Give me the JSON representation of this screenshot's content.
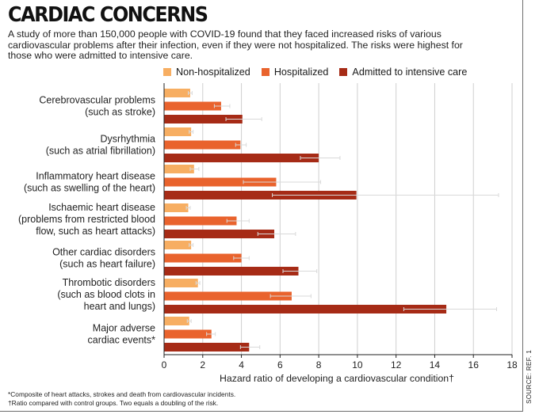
{
  "title": "CARDIAC CONCERNS",
  "subtitle": "A study of more than 150,000 people with COVID-19 found that they faced increased risks of various cardiovascular problems after their infection, even if they were not hospitalized. The risks were highest for those who were admitted to intensive care.",
  "footnotes": [
    "*Composite of heart attacks, strokes and death from cardiovascular incidents.",
    "†Ratio compared with control groups. Two equals a doubling of the risk."
  ],
  "source": "SOURCE: REF. 1",
  "colors": {
    "non": "#f7ae62",
    "hosp": "#e9632d",
    "icu": "#a62b16",
    "grid": "#cfcfcf",
    "err": "#d9d9d9"
  },
  "chart_data": {
    "type": "bar",
    "orientation": "horizontal",
    "xlabel": "Hazard ratio of developing a cardiovascular condition†",
    "xlim": [
      0,
      18
    ],
    "xticks": [
      0,
      2,
      4,
      6,
      8,
      10,
      12,
      14,
      16,
      18
    ],
    "legend_position": "top",
    "categories": [
      [
        "Cerebrovascular problems",
        "(such as stroke)"
      ],
      [
        "Dysrhythmia",
        "(such as atrial fibrillation)"
      ],
      [
        "Inflammatory heart disease",
        "(such as swelling of the heart)"
      ],
      [
        "Ischaemic heart disease",
        "(problems from restricted blood",
        "flow, such as heart attacks)"
      ],
      [
        "Other cardiac disorders",
        "(such as heart failure)"
      ],
      [
        "Thrombotic disorders",
        "(such as blood clots in",
        "heart and lungs)"
      ],
      [
        "Major adverse",
        "cardiac events*"
      ]
    ],
    "series": [
      {
        "name": "Non-hospitalized",
        "key": "non",
        "values": [
          1.35,
          1.4,
          1.55,
          1.25,
          1.4,
          1.75,
          1.3
        ],
        "ci": [
          [
            1.25,
            1.45
          ],
          [
            1.3,
            1.5
          ],
          [
            1.35,
            1.8
          ],
          [
            1.15,
            1.35
          ],
          [
            1.3,
            1.5
          ],
          [
            1.65,
            1.85
          ],
          [
            1.2,
            1.4
          ]
        ]
      },
      {
        "name": "Hospitalized",
        "key": "hosp",
        "values": [
          2.95,
          3.95,
          5.8,
          3.75,
          4.0,
          6.6,
          2.45
        ],
        "ci": [
          [
            2.6,
            3.4
          ],
          [
            3.7,
            4.25
          ],
          [
            4.1,
            8.1
          ],
          [
            3.25,
            4.4
          ],
          [
            3.6,
            4.4
          ],
          [
            5.5,
            7.6
          ],
          [
            2.2,
            2.65
          ]
        ]
      },
      {
        "name": "Admitted to intensive care",
        "key": "icu",
        "values": [
          4.05,
          8.0,
          9.95,
          5.7,
          6.95,
          14.6,
          4.4
        ],
        "ci": [
          [
            3.2,
            5.05
          ],
          [
            7.05,
            9.1
          ],
          [
            5.6,
            17.3
          ],
          [
            4.85,
            6.8
          ],
          [
            6.15,
            7.9
          ],
          [
            12.4,
            17.2
          ],
          [
            3.95,
            4.95
          ]
        ]
      }
    ]
  }
}
